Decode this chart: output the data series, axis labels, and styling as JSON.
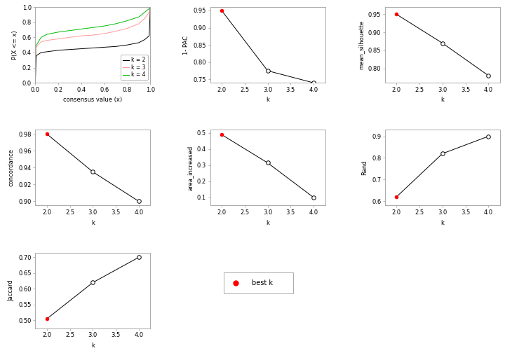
{
  "ecdf": {
    "k2_x": [
      0.0,
      0.005,
      0.01,
      0.05,
      0.1,
      0.2,
      0.3,
      0.4,
      0.5,
      0.6,
      0.7,
      0.8,
      0.9,
      0.95,
      0.99,
      1.0
    ],
    "k2_y": [
      0.0,
      0.33,
      0.36,
      0.4,
      0.41,
      0.43,
      0.44,
      0.45,
      0.46,
      0.47,
      0.48,
      0.5,
      0.53,
      0.57,
      0.62,
      1.0
    ],
    "k3_x": [
      0.0,
      0.005,
      0.01,
      0.05,
      0.1,
      0.2,
      0.3,
      0.4,
      0.5,
      0.6,
      0.7,
      0.8,
      0.9,
      0.95,
      0.99,
      1.0
    ],
    "k3_y": [
      0.0,
      0.45,
      0.48,
      0.54,
      0.56,
      0.58,
      0.6,
      0.62,
      0.63,
      0.65,
      0.68,
      0.72,
      0.78,
      0.85,
      0.93,
      1.0
    ],
    "k4_x": [
      0.0,
      0.005,
      0.01,
      0.05,
      0.1,
      0.2,
      0.3,
      0.4,
      0.5,
      0.6,
      0.7,
      0.8,
      0.9,
      0.95,
      0.99,
      1.0
    ],
    "k4_y": [
      0.0,
      0.45,
      0.5,
      0.6,
      0.64,
      0.67,
      0.69,
      0.71,
      0.73,
      0.75,
      0.78,
      0.82,
      0.87,
      0.93,
      0.98,
      1.0
    ],
    "color_k2": "#000000",
    "color_k3": "#ff9999",
    "color_k4": "#00bb00",
    "xlabel": "consensus value (x)",
    "ylabel": "P(X <= x)",
    "xlim": [
      0.0,
      1.0
    ],
    "ylim": [
      0.0,
      1.0
    ]
  },
  "pac": {
    "k": [
      2,
      3,
      4
    ],
    "values": [
      0.95,
      0.775,
      0.74
    ],
    "best_k": 2,
    "ylabel": "1- PAC",
    "xlabel": "k",
    "ylim": [
      0.74,
      0.96
    ],
    "yticks": [
      0.75,
      0.8,
      0.85,
      0.9,
      0.95
    ]
  },
  "silhouette": {
    "k": [
      2,
      3,
      4
    ],
    "values": [
      0.95,
      0.87,
      0.78
    ],
    "best_k": 2,
    "ylabel": "mean_silhouette",
    "xlabel": "k",
    "ylim": [
      0.76,
      0.97
    ],
    "yticks": [
      0.8,
      0.85,
      0.9,
      0.95
    ]
  },
  "concordance": {
    "k": [
      2,
      3,
      4
    ],
    "values": [
      0.98,
      0.935,
      0.9
    ],
    "best_k": 2,
    "ylabel": "concordance",
    "xlabel": "k",
    "ylim": [
      0.895,
      0.985
    ],
    "yticks": [
      0.9,
      0.92,
      0.94,
      0.96,
      0.98
    ]
  },
  "area_increased": {
    "k": [
      2,
      3,
      4
    ],
    "values": [
      0.49,
      0.315,
      0.1
    ],
    "best_k": 2,
    "ylabel": "area_increased",
    "xlabel": "k",
    "ylim": [
      0.05,
      0.52
    ],
    "yticks": [
      0.1,
      0.2,
      0.3,
      0.4,
      0.5
    ]
  },
  "rand": {
    "k": [
      2,
      3,
      4
    ],
    "values": [
      0.62,
      0.82,
      0.9
    ],
    "best_k": 2,
    "ylabel": "Rand",
    "xlabel": "k",
    "ylim": [
      0.58,
      0.93
    ],
    "yticks": [
      0.6,
      0.7,
      0.8,
      0.9
    ]
  },
  "jaccard": {
    "k": [
      2,
      3,
      4
    ],
    "values": [
      0.505,
      0.62,
      0.7
    ],
    "best_k": 2,
    "ylabel": "Jaccard",
    "xlabel": "k",
    "ylim": [
      0.475,
      0.715
    ],
    "yticks": [
      0.5,
      0.55,
      0.6,
      0.65,
      0.7
    ]
  },
  "best_k_label": "best k",
  "best_k_color": "#ff0000",
  "line_color": "#000000",
  "bg_color": "#ffffff",
  "axis_color": "#aaaaaa",
  "font_size": 6,
  "marker_size_best": 4,
  "marker_size_open": 4
}
